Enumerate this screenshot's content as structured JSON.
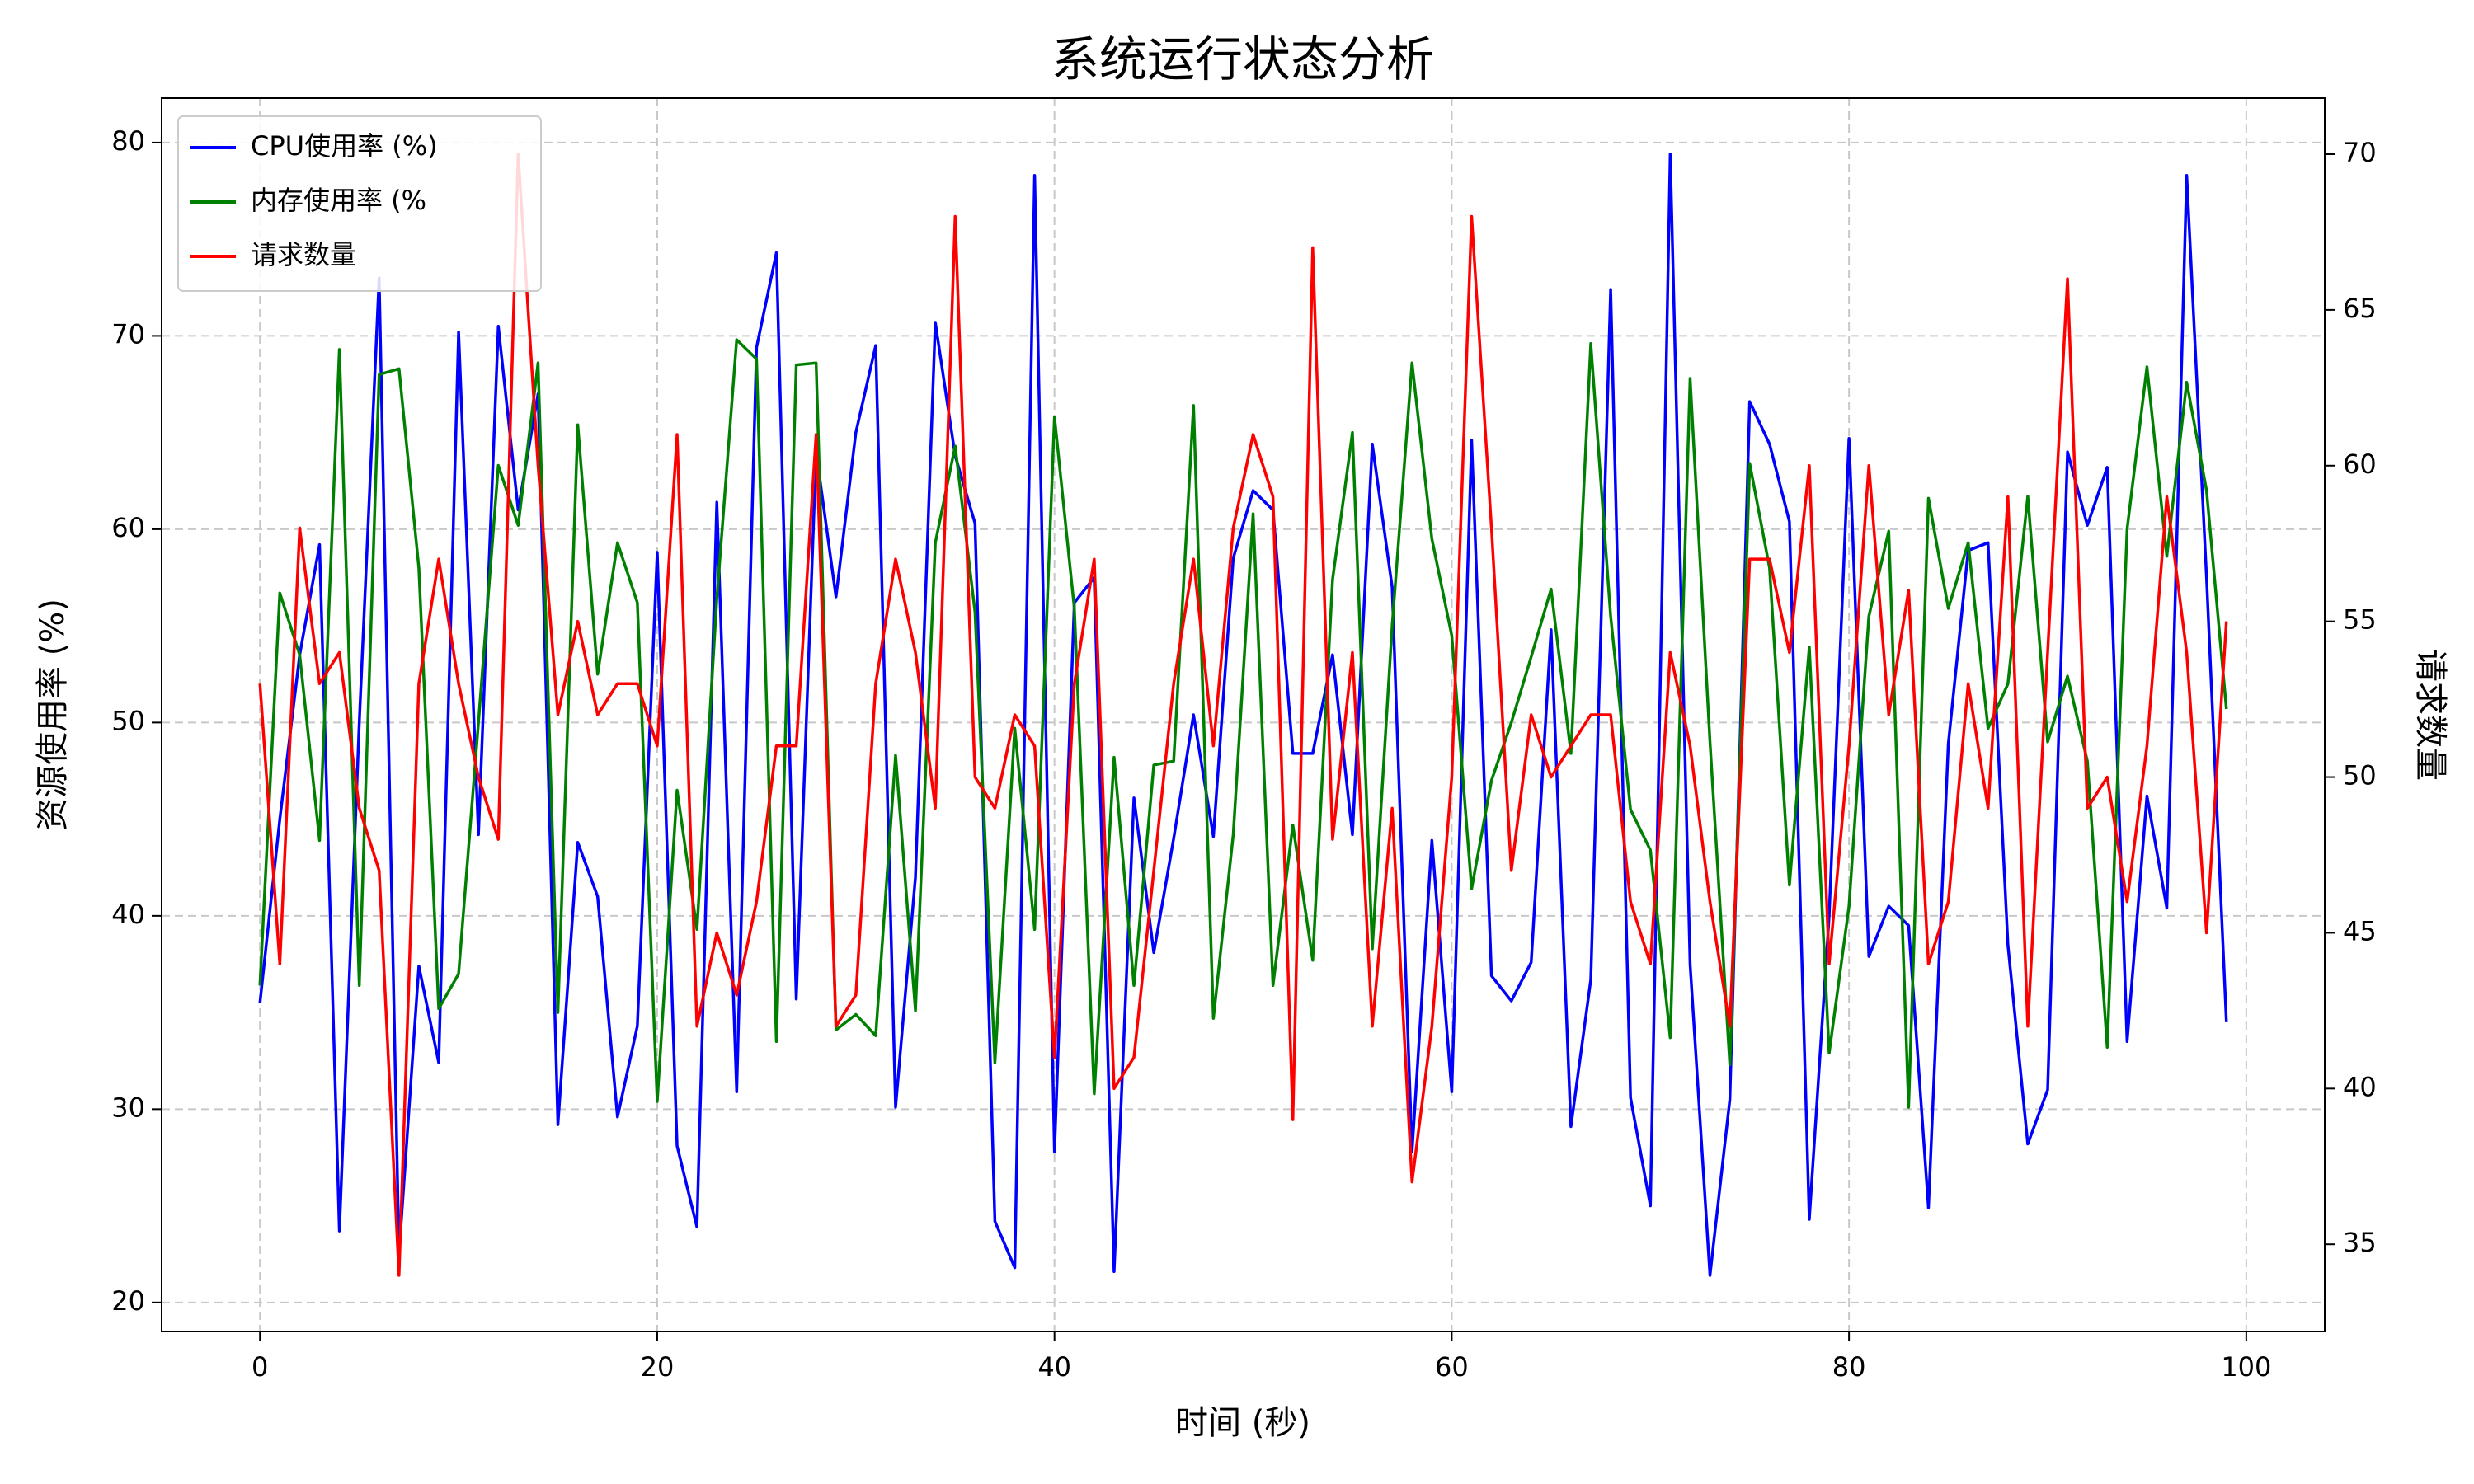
{
  "chart_data": {
    "type": "line",
    "title": "系统运行状态分析",
    "xlabel": "时间 (秒)",
    "ylabel": "资源使用率 (%)",
    "y2label": "请求数量",
    "x": [
      0,
      1,
      2,
      3,
      4,
      5,
      6,
      7,
      8,
      9,
      10,
      11,
      12,
      13,
      14,
      15,
      16,
      17,
      18,
      19,
      20,
      21,
      22,
      23,
      24,
      25,
      26,
      27,
      28,
      29,
      30,
      31,
      32,
      33,
      34,
      35,
      36,
      37,
      38,
      39,
      40,
      41,
      42,
      43,
      44,
      45,
      46,
      47,
      48,
      49,
      50,
      51,
      52,
      53,
      54,
      55,
      56,
      57,
      58,
      59,
      60,
      61,
      62,
      63,
      64,
      65,
      66,
      67,
      68,
      69,
      70,
      71,
      72,
      73,
      74,
      75,
      76,
      77,
      78,
      79,
      80,
      81,
      82,
      83,
      84,
      85,
      86,
      87,
      88,
      89,
      90,
      91,
      92,
      93,
      94,
      95,
      96,
      97,
      98,
      99
    ],
    "series": [
      {
        "name": "CPU使用率 (%)",
        "color": "#0000ff",
        "values": [
          35.5,
          45,
          53.5,
          59.2,
          23.7,
          50,
          73,
          22.5,
          37.4,
          32.4,
          70.2,
          44.2,
          70.5,
          61,
          67,
          29.2,
          43.8,
          41,
          29.6,
          34.3,
          58.8,
          28.1,
          23.9,
          61.4,
          30.9,
          69.4,
          74.3,
          35.7,
          64,
          56.5,
          65,
          69.5,
          30.1,
          42,
          70.7,
          63.8,
          60.3,
          24.2,
          21.8,
          78.3,
          27.8,
          56.2,
          57.5,
          21.6,
          46.1,
          38.1,
          44,
          50.4,
          44.1,
          58.5,
          62,
          61,
          48.4,
          48.4,
          53.5,
          44.2,
          64.4,
          57,
          27.8,
          43.9,
          30.9,
          64.6,
          36.9,
          35.6,
          37.6,
          54.8,
          29.1,
          36.7,
          72.4,
          30.6,
          25,
          79.4,
          37.5,
          21.4,
          30.5,
          66.6,
          64.4,
          60.4,
          24.3,
          40,
          64.7,
          37.9,
          40.5,
          39.5,
          24.9,
          48.9,
          58.9,
          59.3,
          38.5,
          28.2,
          31,
          64,
          60.2,
          63.2,
          33.5,
          46.2,
          40.4,
          78.3,
          57.5,
          34.5
        ]
      },
      {
        "name": "内存使用率 (%",
        "color": "#008000",
        "values": [
          36.4,
          56.7,
          53.5,
          43.9,
          69.3,
          36.4,
          68,
          68.3,
          58,
          35.2,
          37,
          50,
          63.3,
          60.2,
          68.6,
          35,
          65.4,
          52.5,
          59.3,
          56.2,
          30.4,
          46.5,
          39.3,
          56.4,
          69.8,
          68.8,
          33.5,
          68.5,
          68.6,
          34.1,
          34.9,
          33.8,
          48.3,
          35.1,
          59.3,
          64.3,
          55.7,
          32.4,
          49.7,
          39.3,
          65.8,
          55.9,
          30.8,
          48.2,
          36.4,
          47.8,
          48,
          66.4,
          34.7,
          44.2,
          60.8,
          36.4,
          44.7,
          37.7,
          57.4,
          65,
          38.3,
          55,
          68.6,
          59.5,
          54.5,
          41.4,
          47,
          50,
          53.4,
          56.9,
          48.4,
          69.6,
          55.5,
          45.5,
          43.4,
          33.7,
          67.8,
          49,
          32.3,
          63.4,
          58,
          41.6,
          53.9,
          32.9,
          40.5,
          55.5,
          59.9,
          30.1,
          61.6,
          55.9,
          59.3,
          49.7,
          52,
          61.7,
          49,
          52.4,
          48,
          33.2,
          60,
          68.4,
          58.6,
          67.6,
          62,
          50.7
        ]
      },
      {
        "name": "请求数量",
        "color": "#ff0000",
        "axis": "y2",
        "values": [
          53,
          44,
          58,
          53,
          54,
          49,
          47,
          34,
          53,
          57,
          53,
          50,
          48,
          70,
          60,
          52,
          55,
          52,
          53,
          53,
          51,
          61,
          42,
          45,
          43,
          46,
          51,
          51,
          61,
          42,
          43,
          53,
          57,
          54,
          49,
          68,
          50,
          49,
          52,
          51,
          41,
          53,
          57,
          40,
          41,
          47,
          53,
          57,
          51,
          58,
          61,
          59,
          39,
          67,
          48,
          54,
          42,
          49,
          37,
          42,
          50,
          68,
          58,
          47,
          52,
          50,
          51,
          52,
          52,
          46,
          44,
          54,
          51,
          46,
          42,
          57,
          57,
          54,
          60,
          44,
          51,
          60,
          52,
          56,
          44,
          46,
          53,
          49,
          59,
          42,
          54,
          66,
          49,
          50,
          46,
          51,
          59,
          54,
          45,
          55
        ]
      }
    ],
    "xlim": [
      -4.95,
      103.95
    ],
    "xticks": [
      0,
      20,
      40,
      60,
      80,
      100
    ],
    "ylim": [
      18.5,
      82.3
    ],
    "yticks": [
      20,
      30,
      40,
      50,
      60,
      70,
      80
    ],
    "y2lim": [
      32.2,
      71.8
    ],
    "y2ticks": [
      35,
      40,
      45,
      50,
      55,
      60,
      65,
      70
    ],
    "grid": true,
    "legend": "upper left"
  }
}
